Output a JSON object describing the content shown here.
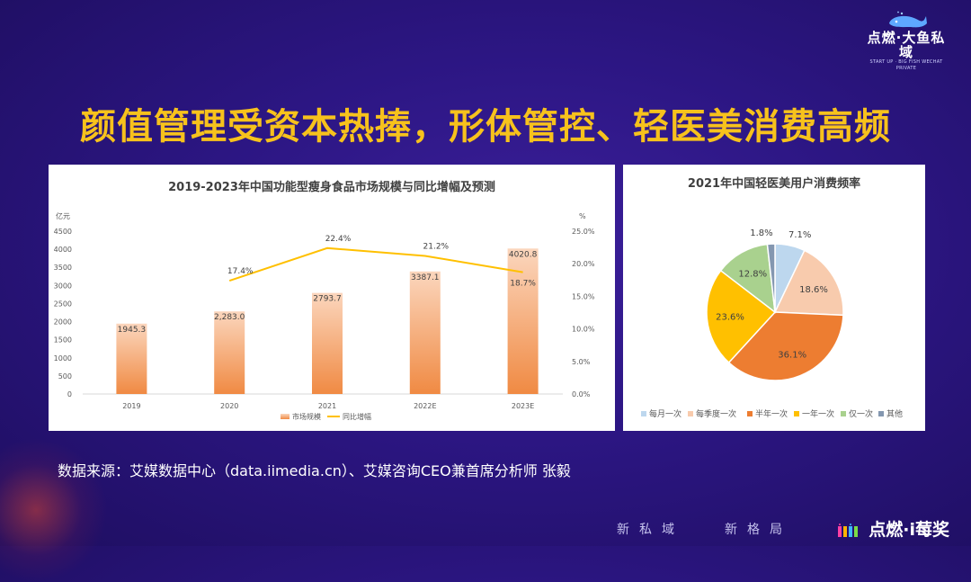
{
  "header": {
    "brand_name": "点燃·大鱼私域",
    "brand_tagline": "START UP · BIG FISH WECHAT PRIVATE",
    "logo_icon": "whale-icon"
  },
  "headline": "颜值管理受资本热捧，形体管控、轻医美消费高频",
  "chart_data": [
    {
      "type": "bar",
      "title": "2019-2023年中国功能型瘦身食品市场规模与同比增幅及预测",
      "categories": [
        "2019",
        "2020",
        "2021",
        "2022E",
        "2023E"
      ],
      "y_left_unit": "亿元",
      "y_left_ticks": [
        "0",
        "500",
        "1000",
        "1500",
        "2000",
        "2500",
        "3000",
        "3500",
        "4000",
        "4500"
      ],
      "ylim_left": [
        0,
        4500
      ],
      "y_right_unit": "%",
      "y_right_ticks": [
        "0.0%",
        "5.0%",
        "10.0%",
        "15.0%",
        "20.0%",
        "25.0%"
      ],
      "ylim_right": [
        0,
        25
      ],
      "series": [
        {
          "name": "市场规模",
          "type": "bar",
          "axis": "left",
          "values": [
            1945.3,
            2283.0,
            2793.7,
            3387.1,
            4020.8
          ],
          "labels": [
            "1945.3",
            "2,283.0",
            "2793.7",
            "3387.1",
            "4020.8"
          ],
          "color": "#f08a43"
        },
        {
          "name": "同比增幅",
          "type": "line",
          "axis": "right",
          "values": [
            null,
            17.4,
            22.4,
            21.2,
            18.7
          ],
          "labels": [
            "",
            "17.4%",
            "22.4%",
            "21.2%",
            "18.7%"
          ],
          "color": "#ffc000"
        }
      ],
      "grid": false,
      "legend": "bottom"
    },
    {
      "type": "pie",
      "title": "2021年中国轻医美用户消费频率",
      "labels": [
        "每月一次",
        "每季度一次",
        "半年一次",
        "一年一次",
        "仅一次",
        "其他"
      ],
      "values": [
        7.1,
        18.6,
        36.1,
        23.6,
        12.8,
        1.8
      ],
      "value_labels": [
        "7.1%",
        "18.6%",
        "36.1%",
        "23.6%",
        "12.8%",
        "1.8%"
      ],
      "colors": [
        "#bdd7ee",
        "#f8cbad",
        "#ed7d31",
        "#ffc000",
        "#a9d18e",
        "#8497b0"
      ],
      "legend": "bottom"
    }
  ],
  "source_text": "数据来源：艾媒数据中心（data.iimedia.cn）、艾媒咨询CEO兼首席分析师 张毅",
  "footer": {
    "left_text": "新私域",
    "right_text": "新格局",
    "brand_text": "点燃·i莓奖"
  }
}
